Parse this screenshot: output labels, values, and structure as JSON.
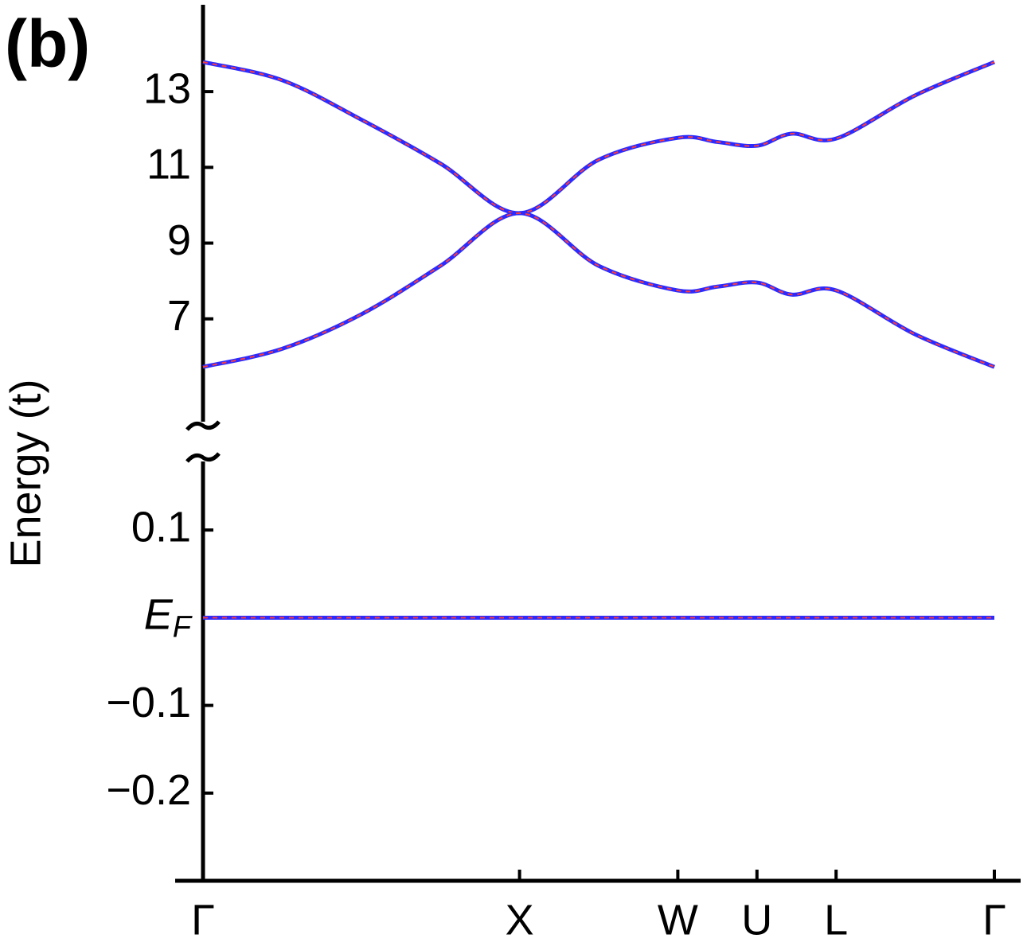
{
  "chart_data": {
    "type": "line",
    "panel_label": "(b)",
    "ylabel": "Energy (t)",
    "xlim": [
      0,
      2.5
    ],
    "xticks": [
      {
        "value": 0,
        "label": "Γ"
      },
      {
        "value": 1,
        "label": "X"
      },
      {
        "value": 1.5,
        "label": "W"
      },
      {
        "value": 1.75,
        "label": "U"
      },
      {
        "value": 2,
        "label": "L"
      },
      {
        "value": 2.5,
        "label": "Γ"
      }
    ],
    "line_color": "#2b2bff",
    "dash_color": "#ff3b3b",
    "panels": [
      {
        "ylim": [
          4.18,
          15.25
        ],
        "yticks": [
          7,
          9,
          11,
          13
        ],
        "x": [
          0,
          0.25,
          0.5,
          0.75,
          1,
          1.25,
          1.5,
          1.625,
          1.75,
          1.86,
          2,
          2.25,
          2.5
        ],
        "series": [
          {
            "values": [
              13.78,
              13.3,
              12.26,
              11.1,
              9.79,
              11.2,
              11.78,
              11.67,
              11.57,
              11.89,
              11.76,
              12.9,
              13.78
            ]
          },
          {
            "values": [
              5.73,
              6.21,
              7.12,
              8.4,
              9.79,
              8.4,
              7.75,
              7.85,
              7.96,
              7.64,
              7.75,
              6.59,
              5.73
            ]
          }
        ]
      },
      {
        "ylim": [
          -0.3,
          0.18
        ],
        "yticks": [
          {
            "value": -0.2,
            "label": "−0.2"
          },
          {
            "value": -0.1,
            "label": "−0.1"
          },
          {
            "value": 0,
            "label": "EF"
          },
          0.1
        ],
        "x": [
          0,
          2.5
        ],
        "series": [
          {
            "values": [
              0,
              0
            ]
          }
        ]
      }
    ]
  }
}
